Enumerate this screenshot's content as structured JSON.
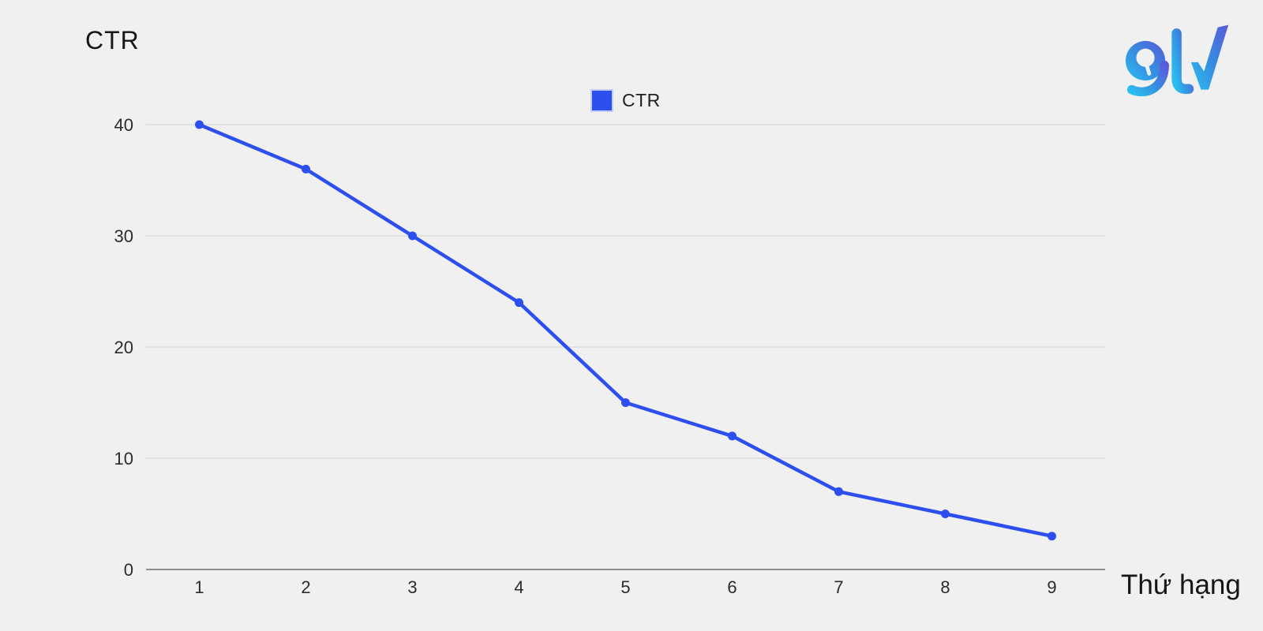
{
  "page": {
    "background": "#f0f0f0"
  },
  "header": {
    "title": "CTR",
    "logo_text": "gtv",
    "logo_gradient": [
      "#2bbdee",
      "#5a5ad8"
    ]
  },
  "legend": {
    "items": [
      {
        "label": "CTR",
        "color": "#2d4ff0"
      }
    ]
  },
  "axes": {
    "x_title": "Thứ hạng"
  },
  "chart_data": {
    "type": "line",
    "title": "CTR",
    "xlabel": "Thứ hạng",
    "ylabel": "",
    "categories": [
      "1",
      "2",
      "3",
      "4",
      "5",
      "6",
      "7",
      "8",
      "9"
    ],
    "series": [
      {
        "name": "CTR",
        "values": [
          40,
          36,
          30,
          24,
          15,
          12,
          7,
          5,
          3
        ]
      }
    ],
    "ylim": [
      0,
      40
    ],
    "yticks": [
      0,
      10,
      20,
      30,
      40
    ],
    "grid": "horizontal",
    "legend_position": "top-center",
    "colors": {
      "line": "#2d4ff0",
      "point": "#2d4ff0",
      "grid": "#dcdcdc",
      "axis": "#8f8f8f",
      "tick_text": "#2b2b2b",
      "background": "#f0f0f0"
    }
  }
}
